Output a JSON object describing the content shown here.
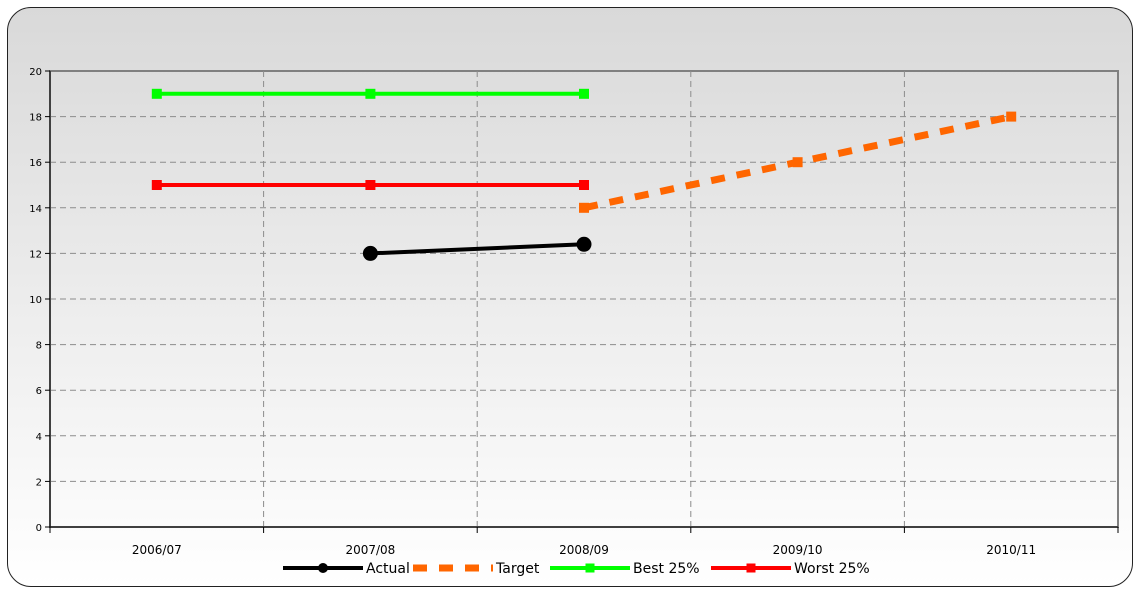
{
  "chart_data": {
    "type": "line",
    "categories": [
      "2006/07",
      "2007/08",
      "2008/09",
      "2009/10",
      "2010/11"
    ],
    "ylim": [
      0,
      20
    ],
    "yticks": [
      0,
      2,
      4,
      6,
      8,
      10,
      12,
      14,
      16,
      18,
      20
    ],
    "grid": true,
    "legend_position": "bottom",
    "series": [
      {
        "name": "Actual",
        "color": "#000000",
        "marker": "circle",
        "dash": "solid",
        "values": [
          null,
          12,
          12.4,
          null,
          null
        ]
      },
      {
        "name": "Target",
        "color": "#ff6600",
        "marker": "square",
        "dash": "dashed",
        "values": [
          null,
          null,
          14,
          16,
          18
        ]
      },
      {
        "name": "Best 25%",
        "color": "#00ff00",
        "marker": "square",
        "dash": "solid",
        "values": [
          19,
          19,
          19,
          null,
          null
        ]
      },
      {
        "name": "Worst 25%",
        "color": "#ff0000",
        "marker": "square",
        "dash": "solid",
        "values": [
          15,
          15,
          15,
          null,
          null
        ]
      }
    ]
  }
}
